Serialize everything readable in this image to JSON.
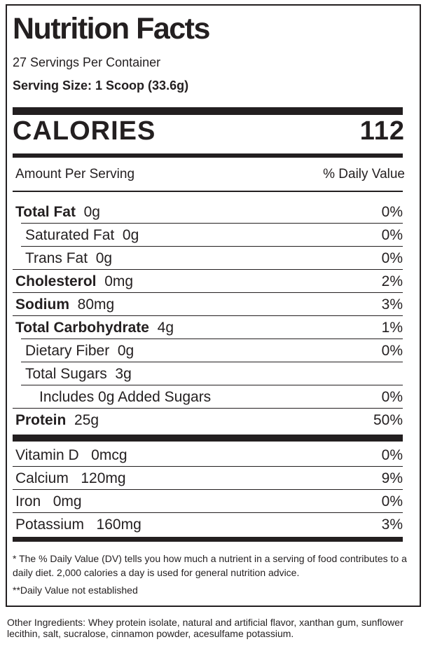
{
  "title": "Nutrition Facts",
  "servings_per_container": "27 Servings Per Container",
  "serving_size": "Serving Size: 1 Scoop (33.6g)",
  "calories_label": "CALORIES",
  "calories_value": "112",
  "amount_header": "Amount Per Serving",
  "dv_header": "% Daily Value",
  "nutrients": [
    {
      "name": "Total Fat",
      "amount": "0g",
      "dv": "0%",
      "bold": true,
      "indent": 0
    },
    {
      "name": "Saturated Fat",
      "amount": "0g",
      "dv": "0%",
      "bold": false,
      "indent": 1
    },
    {
      "name": "Trans Fat",
      "amount": "0g",
      "dv": "0%",
      "bold": false,
      "indent": 1
    },
    {
      "name": "Cholesterol",
      "amount": "0mg",
      "dv": "2%",
      "bold": true,
      "indent": 0
    },
    {
      "name": "Sodium",
      "amount": "80mg",
      "dv": "3%",
      "bold": true,
      "indent": 0
    },
    {
      "name": "Total Carbohydrate",
      "amount": "4g",
      "dv": "1%",
      "bold": true,
      "indent": 0
    },
    {
      "name": "Dietary Fiber",
      "amount": "0g",
      "dv": "0%",
      "bold": false,
      "indent": 1
    },
    {
      "name": "Total Sugars",
      "amount": "3g",
      "dv": "",
      "bold": false,
      "indent": 1
    },
    {
      "name": "Includes 0g Added Sugars",
      "amount": "",
      "dv": "0%",
      "bold": false,
      "indent": 2
    },
    {
      "name": "Protein",
      "amount": "25g",
      "dv": "50%",
      "bold": true,
      "indent": 0
    }
  ],
  "vitamins": [
    {
      "name": "Vitamin D",
      "amount": "0mcg",
      "dv": "0%"
    },
    {
      "name": "Calcium",
      "amount": "120mg",
      "dv": "9%"
    },
    {
      "name": "Iron",
      "amount": "0mg",
      "dv": "0%"
    },
    {
      "name": "Potassium",
      "amount": "160mg",
      "dv": "3%"
    }
  ],
  "footnote_dv": "* The % Daily Value (DV) tells you how much a nutrient in a serving of food contributes to a daily diet. 2,000 calories a day is used for general nutrition advice.",
  "footnote_not_established": "**Daily Value not established",
  "ingredients": "Other Ingredients: Whey protein isolate, natural and artificial flavor, xanthan gum, sunflower lecithin, salt, sucralose, cinnamon powder, acesulfame potassium."
}
